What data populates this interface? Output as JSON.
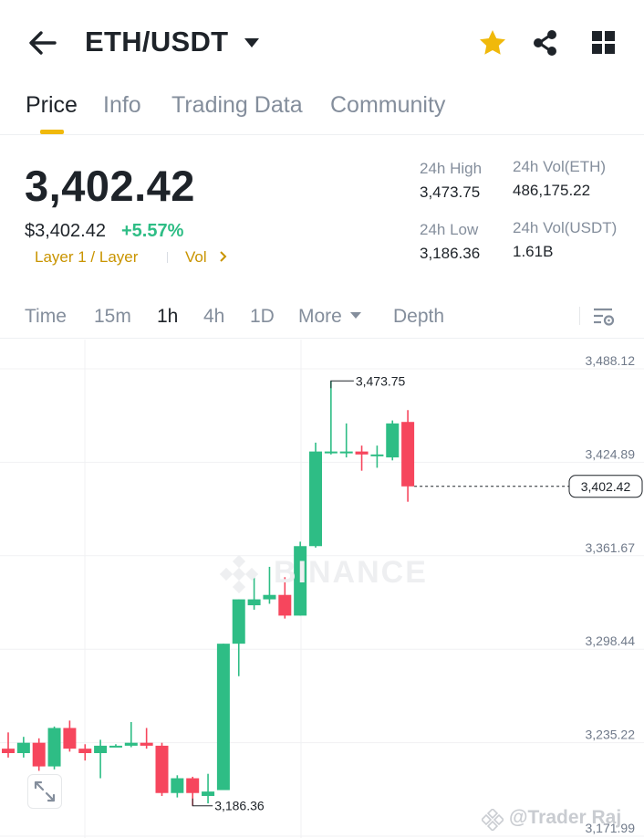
{
  "header": {
    "pair": "ETH/USDT",
    "icons": [
      "back-arrow-icon",
      "caret-down-icon",
      "star-icon",
      "share-icon",
      "grid-icon"
    ],
    "star_color": "#f0b90b"
  },
  "tabs": [
    {
      "label": "Price",
      "active": true
    },
    {
      "label": "Info",
      "active": false
    },
    {
      "label": "Trading Data",
      "active": false
    },
    {
      "label": "Community",
      "active": false
    }
  ],
  "price": {
    "last": "3,402.42",
    "usd": "$3,402.42",
    "change": "+5.57%",
    "tags": {
      "layer": "Layer 1 / Layer",
      "vol": "Vol"
    }
  },
  "stats": {
    "high_label": "24h High",
    "high_value": "3,473.75",
    "low_label": "24h Low",
    "low_value": "3,186.36",
    "vol_eth_label": "24h Vol(ETH)",
    "vol_eth_value": "486,175.22",
    "vol_usdt_label": "24h Vol(USDT)",
    "vol_usdt_value": "1.61B"
  },
  "intervals": [
    {
      "label": "Time",
      "active": false
    },
    {
      "label": "15m",
      "active": false
    },
    {
      "label": "1h",
      "active": true
    },
    {
      "label": "4h",
      "active": false
    },
    {
      "label": "1D",
      "active": false
    },
    {
      "label": "More",
      "active": false
    },
    {
      "label": "Depth",
      "active": false
    }
  ],
  "chart": {
    "watermark": "BINANCE",
    "credit": "@Trader Raj",
    "up_color": "#2ebd85",
    "down_color": "#f6465d"
  },
  "chart_data": {
    "type": "candlestick",
    "interval": "1h",
    "y_ticks": [
      3488.12,
      3424.89,
      3361.67,
      3298.44,
      3235.22,
      3171.99
    ],
    "y_tick_labels": [
      "3,488.12",
      "3,424.89",
      "3,361.67",
      "3,298.44",
      "3,235.22",
      "3,171.99"
    ],
    "ylim": [
      3171.99,
      3488.12
    ],
    "high_marker": {
      "label": "3,473.75",
      "value": 3473.75
    },
    "low_marker": {
      "label": "3,186.36",
      "value": 3186.36
    },
    "last_price": {
      "label": "3,402.42",
      "value": 3402.42
    },
    "candles": [
      {
        "o": 3225,
        "h": 3236,
        "l": 3219,
        "c": 3222
      },
      {
        "o": 3222,
        "h": 3233,
        "l": 3219,
        "c": 3229
      },
      {
        "o": 3229,
        "h": 3232,
        "l": 3210,
        "c": 3213
      },
      {
        "o": 3213,
        "h": 3240,
        "l": 3211,
        "c": 3239
      },
      {
        "o": 3239,
        "h": 3244,
        "l": 3223,
        "c": 3225
      },
      {
        "o": 3225,
        "h": 3228,
        "l": 3217,
        "c": 3222
      },
      {
        "o": 3222,
        "h": 3231,
        "l": 3205,
        "c": 3227
      },
      {
        "o": 3227,
        "h": 3228,
        "l": 3226,
        "c": 3227
      },
      {
        "o": 3227,
        "h": 3243,
        "l": 3226,
        "c": 3229
      },
      {
        "o": 3229,
        "h": 3239,
        "l": 3225,
        "c": 3227
      },
      {
        "o": 3227,
        "h": 3229,
        "l": 3193,
        "c": 3195
      },
      {
        "o": 3195,
        "h": 3207,
        "l": 3192,
        "c": 3205
      },
      {
        "o": 3205,
        "h": 3206,
        "l": 3186.36,
        "c": 3195
      },
      {
        "o": 3193,
        "h": 3208,
        "l": 3188,
        "c": 3196
      },
      {
        "o": 3197,
        "h": 3296,
        "l": 3197,
        "c": 3296
      },
      {
        "o": 3296,
        "h": 3326,
        "l": 3274,
        "c": 3326
      },
      {
        "o": 3322,
        "h": 3341,
        "l": 3319,
        "c": 3326
      },
      {
        "o": 3326,
        "h": 3348,
        "l": 3323,
        "c": 3329
      },
      {
        "o": 3329,
        "h": 3341,
        "l": 3313,
        "c": 3315
      },
      {
        "o": 3315,
        "h": 3365,
        "l": 3315,
        "c": 3362
      },
      {
        "o": 3362,
        "h": 3432,
        "l": 3361,
        "c": 3426
      },
      {
        "o": 3426,
        "h": 3473.75,
        "l": 3424,
        "c": 3426
      },
      {
        "o": 3426,
        "h": 3445,
        "l": 3422,
        "c": 3426
      },
      {
        "o": 3426,
        "h": 3430,
        "l": 3413,
        "c": 3424
      },
      {
        "o": 3423,
        "h": 3430,
        "l": 3415,
        "c": 3424
      },
      {
        "o": 3422,
        "h": 3447,
        "l": 3420,
        "c": 3445
      },
      {
        "o": 3446,
        "h": 3454,
        "l": 3392,
        "c": 3402.42
      }
    ]
  }
}
